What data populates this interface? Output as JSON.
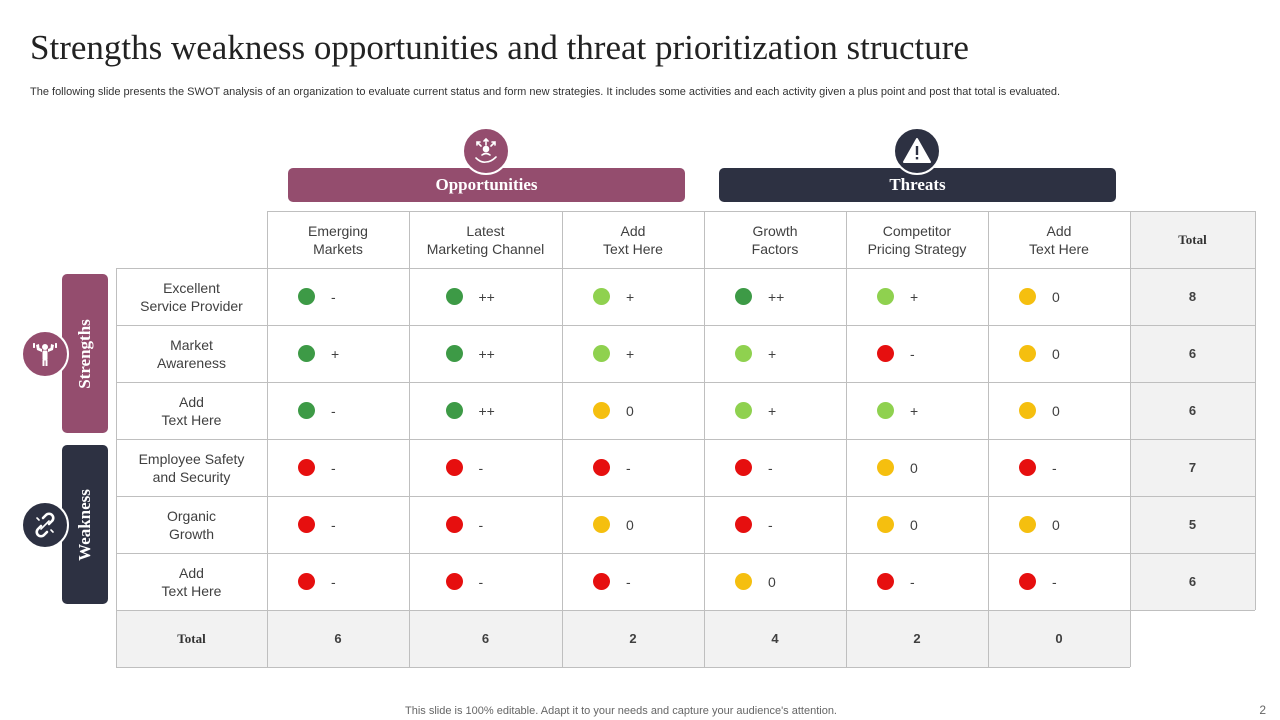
{
  "title": "Strengths weakness opportunities and threat prioritization structure",
  "subtitle": "The following slide presents the SWOT analysis of an organization to evaluate current status and form new strategies. It includes some activities and each activity given a plus point and post that total is evaluated.",
  "categories": {
    "opportunities": "Opportunities",
    "threats": "Threats",
    "strengths": "Strengths",
    "weakness": "Weakness"
  },
  "colors": {
    "plum": "#944d6e",
    "navy": "#2d3142",
    "dark_green": "#3d9a46",
    "light_green": "#8fd14f",
    "yellow": "#f5bf0f",
    "red": "#e60f0f"
  },
  "icons": {
    "opportunities": "hand-arrows-icon",
    "threats": "warning-triangle-icon",
    "strengths": "flexing-arms-icon",
    "weakness": "broken-chain-icon"
  },
  "table": {
    "columns": [
      {
        "line1": "Emerging",
        "line2": "Markets"
      },
      {
        "line1": "Latest",
        "line2": "Marketing Channel"
      },
      {
        "line1": "Add",
        "line2": "Text Here"
      },
      {
        "line1": "Growth",
        "line2": "Factors"
      },
      {
        "line1": "Competitor",
        "line2": "Pricing Strategy"
      },
      {
        "line1": "Add",
        "line2": "Text Here"
      }
    ],
    "total_label": "Total",
    "rows": [
      {
        "line1": "Excellent",
        "line2": "Service Provider",
        "total": "8",
        "cells": [
          [
            "dark_green",
            "-"
          ],
          [
            "dark_green",
            "++"
          ],
          [
            "light_green",
            "+"
          ],
          [
            "dark_green",
            "++"
          ],
          [
            "light_green",
            "+"
          ],
          [
            "yellow",
            "0"
          ]
        ]
      },
      {
        "line1": "Market",
        "line2": "Awareness",
        "total": "6",
        "cells": [
          [
            "dark_green",
            "+"
          ],
          [
            "dark_green",
            "++"
          ],
          [
            "light_green",
            "+"
          ],
          [
            "light_green",
            "+"
          ],
          [
            "red",
            "-"
          ],
          [
            "yellow",
            "0"
          ]
        ]
      },
      {
        "line1": "Add",
        "line2": "Text Here",
        "total": "6",
        "cells": [
          [
            "dark_green",
            "-"
          ],
          [
            "dark_green",
            "++"
          ],
          [
            "yellow",
            "0"
          ],
          [
            "light_green",
            "+"
          ],
          [
            "light_green",
            "+"
          ],
          [
            "yellow",
            "0"
          ]
        ]
      },
      {
        "line1": "Employee Safety",
        "line2": "and Security",
        "total": "7",
        "cells": [
          [
            "red",
            "-"
          ],
          [
            "red",
            "-"
          ],
          [
            "red",
            "-"
          ],
          [
            "red",
            "-"
          ],
          [
            "yellow",
            "0"
          ],
          [
            "red",
            "-"
          ]
        ]
      },
      {
        "line1": "Organic",
        "line2": "Growth",
        "total": "5",
        "cells": [
          [
            "red",
            "-"
          ],
          [
            "red",
            "-"
          ],
          [
            "yellow",
            "0"
          ],
          [
            "red",
            "-"
          ],
          [
            "yellow",
            "0"
          ],
          [
            "yellow",
            "0"
          ]
        ]
      },
      {
        "line1": "Add",
        "line2": "Text Here",
        "total": "6",
        "cells": [
          [
            "red",
            "-"
          ],
          [
            "red",
            "-"
          ],
          [
            "red",
            "-"
          ],
          [
            "yellow",
            "0"
          ],
          [
            "red",
            "-"
          ],
          [
            "red",
            "-"
          ]
        ]
      }
    ],
    "column_totals": [
      "6",
      "6",
      "2",
      "4",
      "2",
      "0"
    ]
  },
  "footer": "This slide is 100% editable. Adapt it to your needs and capture your audience's attention.",
  "page_number": "2"
}
